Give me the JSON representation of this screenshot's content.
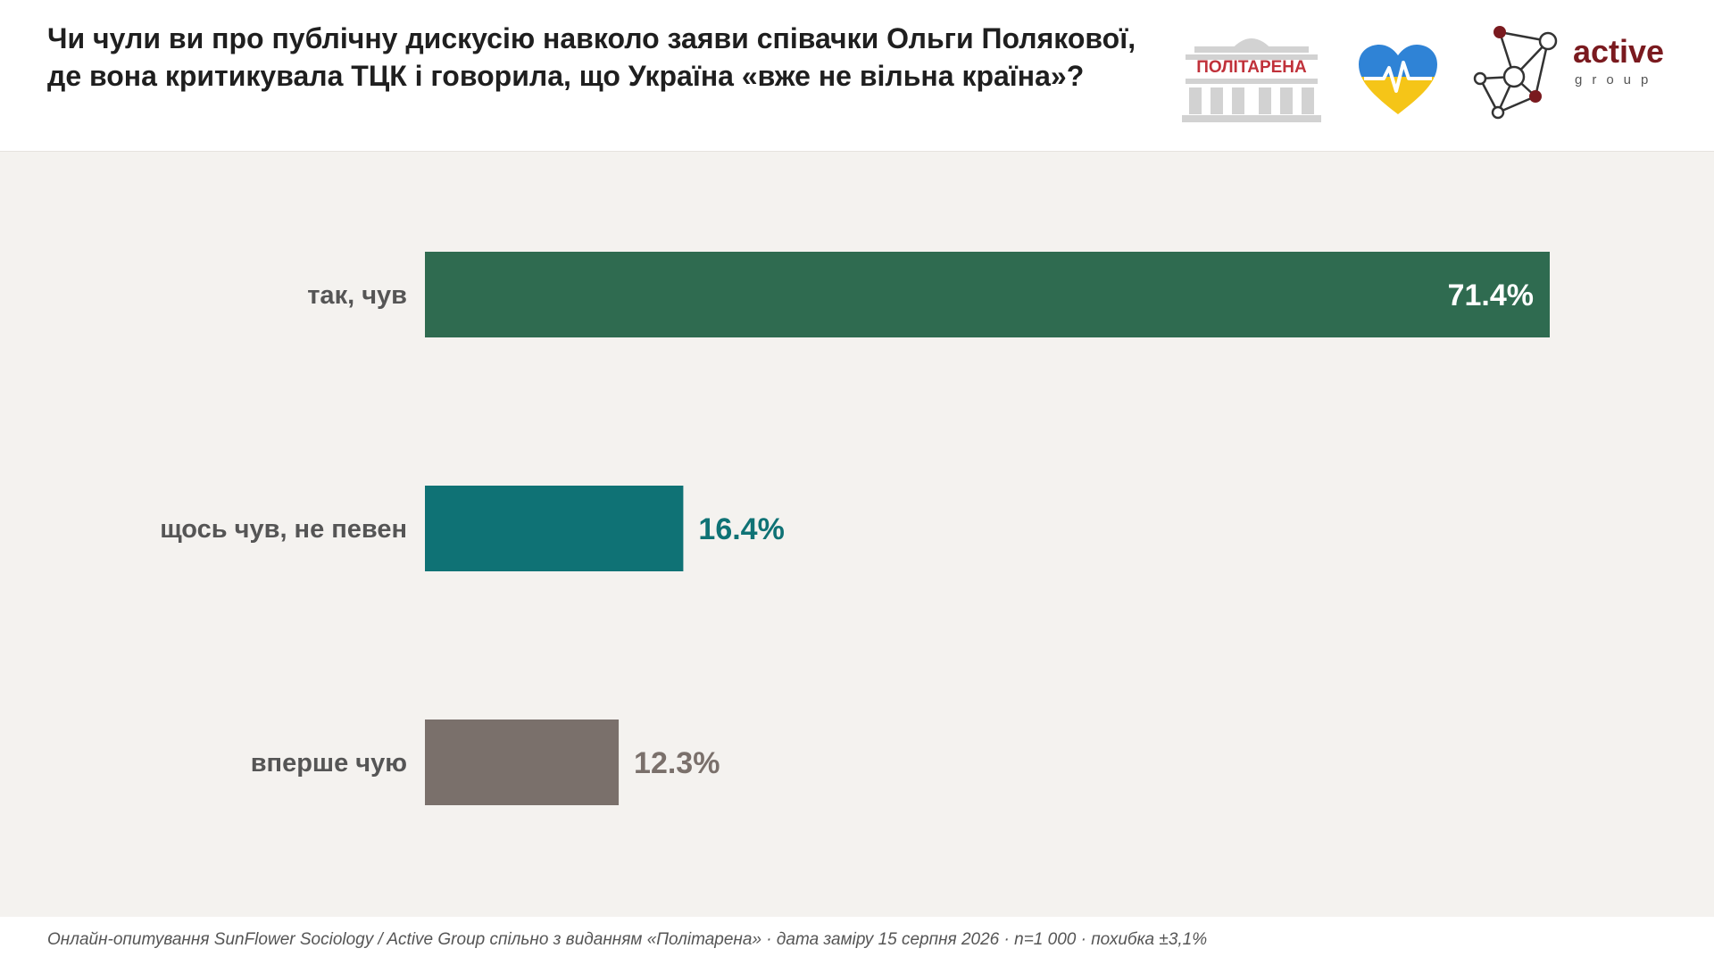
{
  "header": {
    "title": "Чи чули ви про публічну дискусію навколо заяви співачки Ольги Полякової, де вона критикувала ТЦК і говорила, що Україна «вже не вільна країна»?",
    "logos": [
      {
        "name": "politarena-logo",
        "text": "ПОЛІТАРЕНА"
      },
      {
        "name": "sunflower-heart-logo",
        "text": ""
      },
      {
        "name": "active-group-logo",
        "text": "active",
        "subtext": "group"
      }
    ]
  },
  "colors": {
    "bar_yes": "#2f6b50",
    "bar_somewhat": "#0f7275",
    "bar_first": "#7a706b",
    "label_somewhat": "#0f7275",
    "label_first": "#7a706b",
    "label_inside": "#ffffff",
    "plot_bg": "#f4f2ef",
    "brand_red": "#7a1a1f"
  },
  "chart_data": {
    "type": "bar",
    "orientation": "horizontal",
    "title": "Чи чули ви про публічну дискусію навколо заяви співачки Ольги Полякової, де вона критикувала ТЦК і говорила, що Україна «вже не вільна країна»?",
    "categories": [
      "так, чув",
      "щось чув, не певен",
      "вперше чую"
    ],
    "values": [
      71.4,
      16.4,
      12.3
    ],
    "value_labels": [
      "71.4%",
      "16.4%",
      "12.3%"
    ],
    "unit": "%",
    "xlim": [
      0,
      71.4
    ],
    "grid": false,
    "legend": "none"
  },
  "footer": {
    "note": "Онлайн-опитування SunFlower Sociology / Active Group спільно з виданням «Політарена» · дата заміру 15 серпня 2026 · n=1 000 · похибка ±3,1%"
  }
}
